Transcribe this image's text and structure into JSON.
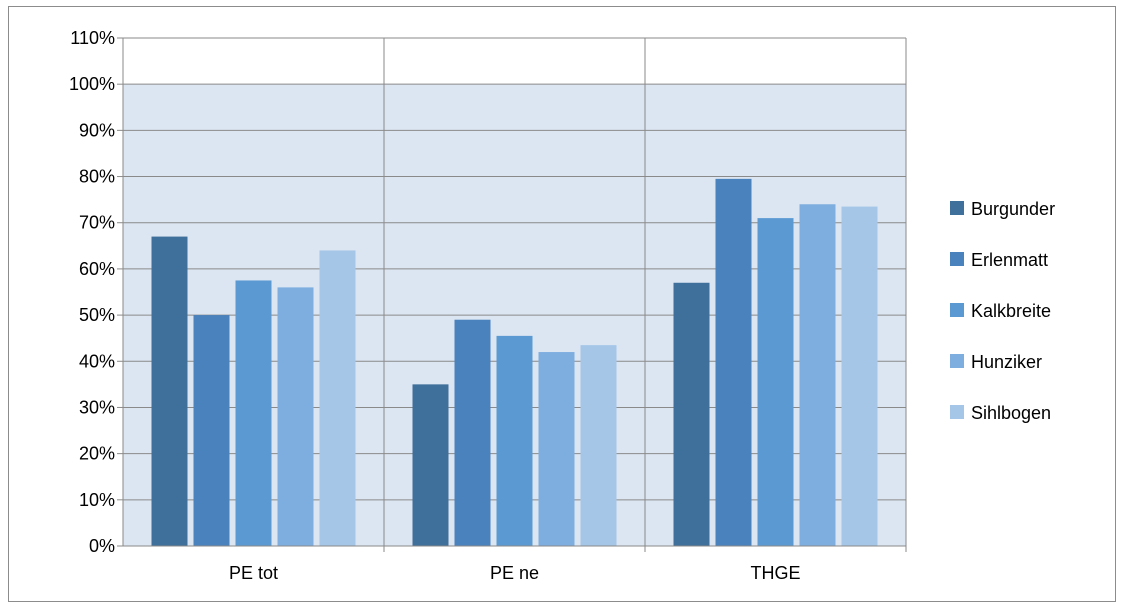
{
  "chart_data": {
    "type": "bar",
    "categories": [
      "PE tot",
      "PE ne",
      "THGE"
    ],
    "series": [
      {
        "name": "Burgunder",
        "values": [
          67,
          35,
          57
        ],
        "color": "#3f6f9b"
      },
      {
        "name": "Erlenmatt",
        "values": [
          50,
          49,
          79.5
        ],
        "color": "#4a82bd"
      },
      {
        "name": "Kalkbreite",
        "values": [
          57.5,
          45.5,
          71
        ],
        "color": "#5b99d3"
      },
      {
        "name": "Hunziker",
        "values": [
          56,
          42,
          74
        ],
        "color": "#7eaee0"
      },
      {
        "name": "Sihlbogen",
        "values": [
          64,
          43.5,
          73.5
        ],
        "color": "#a6c6e8"
      }
    ],
    "yticks": [
      "0%",
      "10%",
      "20%",
      "30%",
      "40%",
      "50%",
      "60%",
      "70%",
      "80%",
      "90%",
      "100%",
      "110%"
    ],
    "ylim": [
      0,
      110
    ],
    "title": "",
    "xlabel": "",
    "ylabel": "",
    "grid": true,
    "legend_position": "right",
    "plot_background": "#dce6f2"
  }
}
